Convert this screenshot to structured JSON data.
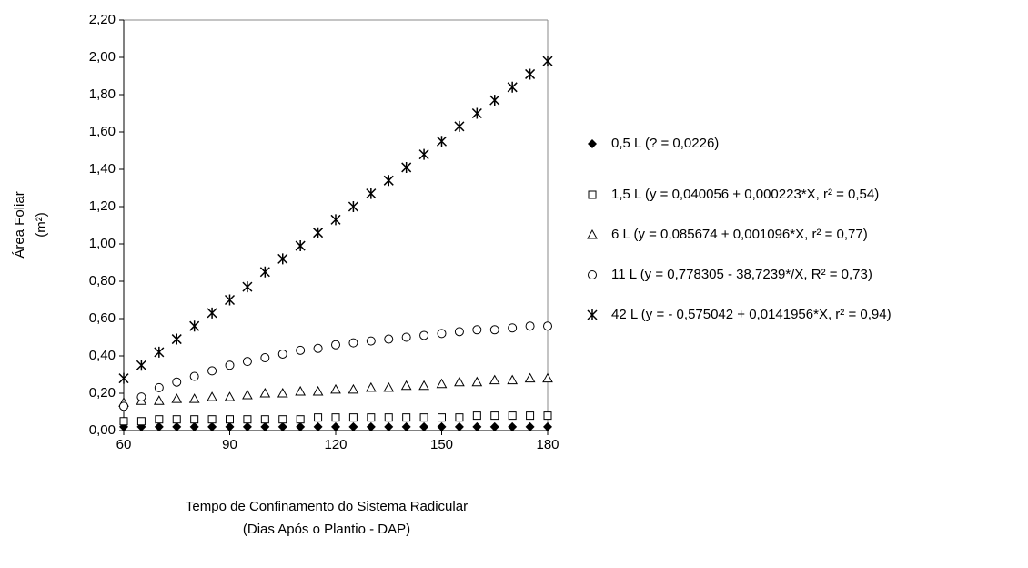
{
  "chart_data": {
    "type": "scatter",
    "y_label": [
      "Área Foliar",
      "(m²)"
    ],
    "x_label": [
      "Tempo de Confinamento do Sistema Radicular",
      "(Dias Após o Plantio - DAP)"
    ],
    "x": [
      60,
      65,
      70,
      75,
      80,
      85,
      90,
      95,
      100,
      105,
      110,
      115,
      120,
      125,
      130,
      135,
      140,
      145,
      150,
      155,
      160,
      165,
      170,
      175,
      180
    ],
    "xlim": [
      60,
      180
    ],
    "xticks": [
      60,
      90,
      120,
      150,
      180
    ],
    "ylim": [
      0,
      2.2
    ],
    "yticks": [
      {
        "value": 0,
        "label": "0,00"
      },
      {
        "value": 0.2,
        "label": "0,20"
      },
      {
        "value": 0.4,
        "label": "0,40"
      },
      {
        "value": 0.6,
        "label": "0,60"
      },
      {
        "value": 0.8,
        "label": "0,80"
      },
      {
        "value": 1.0,
        "label": "1,00"
      },
      {
        "value": 1.2,
        "label": "1,20"
      },
      {
        "value": 1.4,
        "label": "1,40"
      },
      {
        "value": 1.6,
        "label": "1,60"
      },
      {
        "value": 1.8,
        "label": "1,80"
      },
      {
        "value": 2.0,
        "label": "2,00"
      },
      {
        "value": 2.2,
        "label": "2,20"
      }
    ],
    "legend": "right",
    "series": [
      {
        "name": "0,5 L (? = 0,0226)",
        "color": "#000000",
        "marker": "diamond",
        "values": [
          0.02,
          0.02,
          0.02,
          0.02,
          0.02,
          0.02,
          0.02,
          0.02,
          0.02,
          0.02,
          0.02,
          0.02,
          0.02,
          0.02,
          0.02,
          0.02,
          0.02,
          0.02,
          0.02,
          0.02,
          0.02,
          0.02,
          0.02,
          0.02,
          0.02
        ]
      },
      {
        "name": "1,5 L (y = 0,040056 + 0,000223*X, r² = 0,54)",
        "color": "#000000",
        "marker": "square",
        "values": [
          0.05,
          0.05,
          0.06,
          0.06,
          0.06,
          0.06,
          0.06,
          0.06,
          0.06,
          0.06,
          0.06,
          0.07,
          0.07,
          0.07,
          0.07,
          0.07,
          0.07,
          0.07,
          0.07,
          0.07,
          0.08,
          0.08,
          0.08,
          0.08,
          0.08
        ]
      },
      {
        "name": "6 L (y = 0,085674 + 0,001096*X, r² = 0,77)",
        "color": "#000000",
        "marker": "triangle",
        "values": [
          0.15,
          0.16,
          0.16,
          0.17,
          0.17,
          0.18,
          0.18,
          0.19,
          0.2,
          0.2,
          0.21,
          0.21,
          0.22,
          0.22,
          0.23,
          0.23,
          0.24,
          0.24,
          0.25,
          0.26,
          0.26,
          0.27,
          0.27,
          0.28,
          0.28
        ]
      },
      {
        "name": "11 L (y = 0,778305 - 38,7239*/X, R² = 0,73)",
        "color": "#000000",
        "marker": "circle",
        "values": [
          0.13,
          0.18,
          0.23,
          0.26,
          0.29,
          0.32,
          0.35,
          0.37,
          0.39,
          0.41,
          0.43,
          0.44,
          0.46,
          0.47,
          0.48,
          0.49,
          0.5,
          0.51,
          0.52,
          0.53,
          0.54,
          0.54,
          0.55,
          0.56,
          0.56
        ]
      },
      {
        "name": "42 L (y = - 0,575042 + 0,0141956*X, r² = 0,94)",
        "color": "#000000",
        "marker": "asterisk",
        "values": [
          0.28,
          0.35,
          0.42,
          0.49,
          0.56,
          0.63,
          0.7,
          0.77,
          0.85,
          0.92,
          0.99,
          1.06,
          1.13,
          1.2,
          1.27,
          1.34,
          1.41,
          1.48,
          1.55,
          1.63,
          1.7,
          1.77,
          1.84,
          1.91,
          1.98
        ]
      }
    ]
  }
}
